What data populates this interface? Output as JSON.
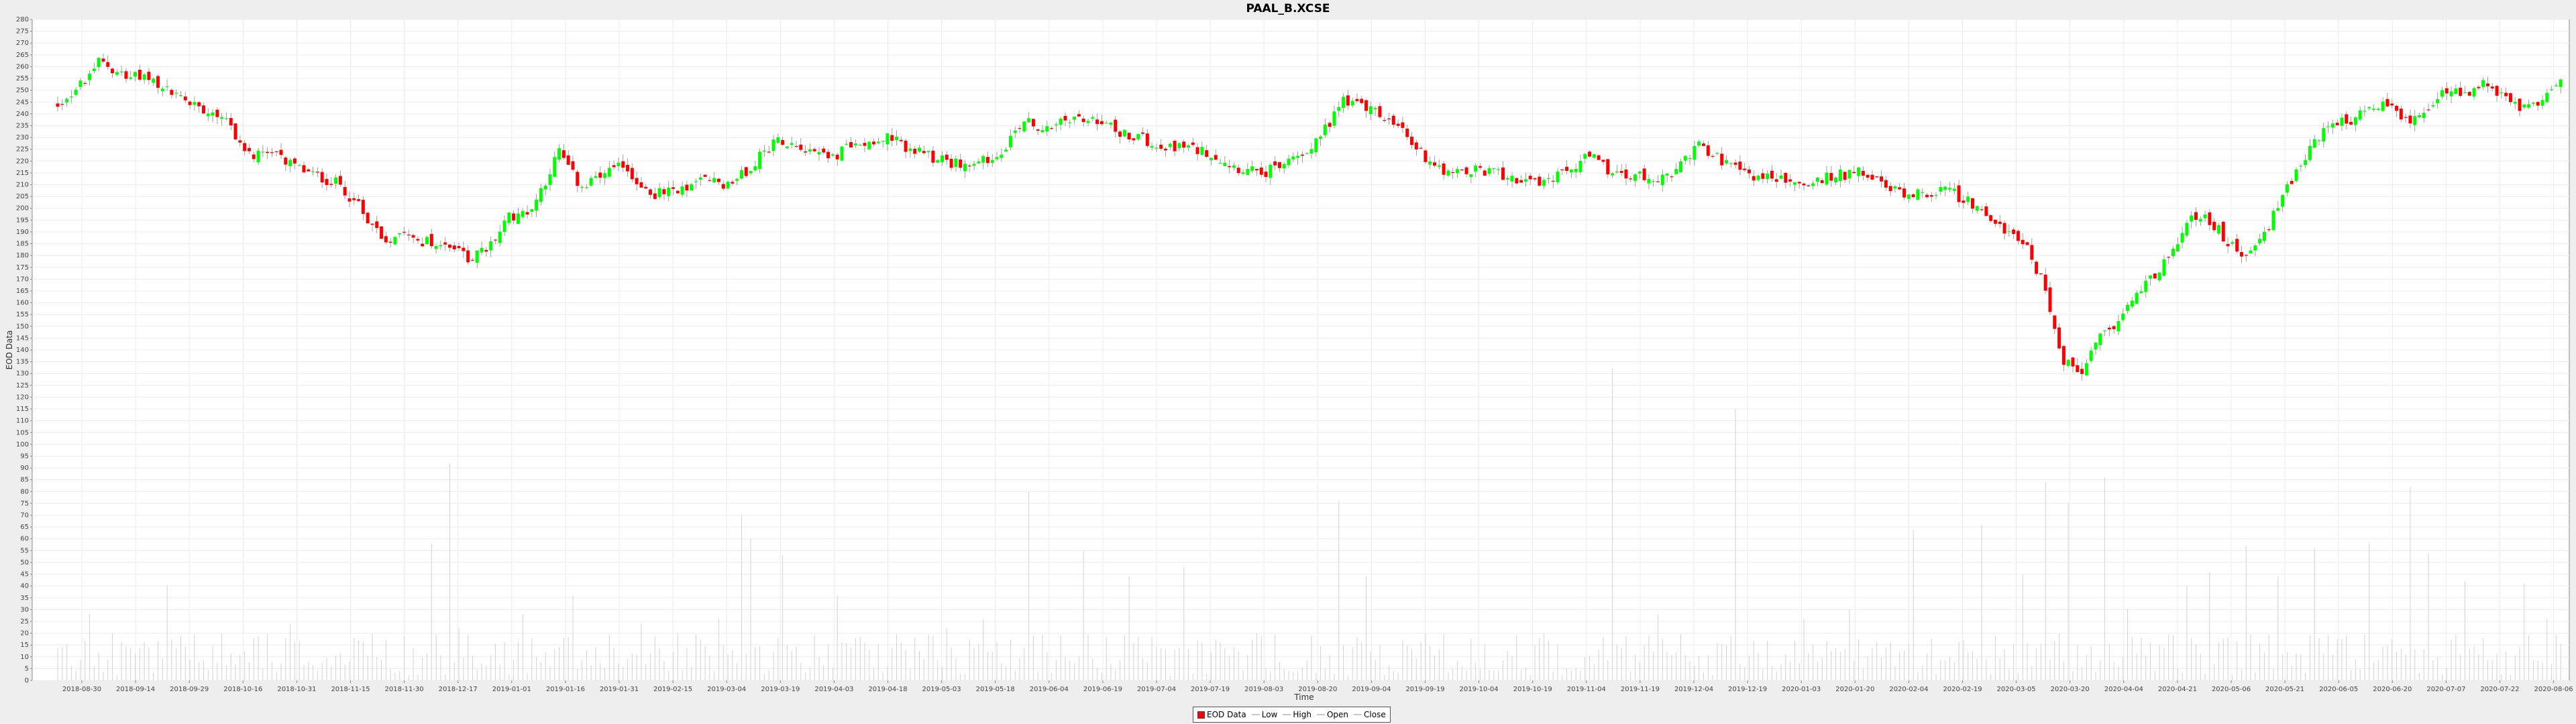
{
  "chart_data": {
    "type": "candlestick",
    "title": "PAAL_B.XCSE",
    "xlabel": "Time",
    "ylabel": "EOD Data",
    "ylim": [
      0,
      280
    ],
    "ytick_step": 5,
    "x_tick_labels": [
      "2018-08-30",
      "2018-09-14",
      "2018-09-29",
      "2018-10-16",
      "2018-10-31",
      "2018-11-15",
      "2018-11-30",
      "2018-12-17",
      "2019-01-01",
      "2019-01-16",
      "2019-01-31",
      "2019-02-15",
      "2019-03-04",
      "2019-03-19",
      "2019-04-03",
      "2019-04-18",
      "2019-05-03",
      "2019-05-18",
      "2019-06-04",
      "2019-06-19",
      "2019-07-04",
      "2019-07-19",
      "2019-08-03",
      "2019-08-20",
      "2019-09-04",
      "2019-09-19",
      "2019-10-04",
      "2019-10-19",
      "2019-11-04",
      "2019-11-19",
      "2019-12-04",
      "2019-12-19",
      "2020-01-03",
      "2020-01-20",
      "2020-02-04",
      "2020-02-19",
      "2020-03-05",
      "2020-03-20",
      "2020-04-04",
      "2020-04-21",
      "2020-05-06",
      "2020-05-21",
      "2020-06-05",
      "2020-06-20",
      "2020-07-07",
      "2020-07-22",
      "2020-08-06"
    ],
    "close_anchors": [
      [
        0,
        244
      ],
      [
        5,
        252
      ],
      [
        9,
        262
      ],
      [
        14,
        258
      ],
      [
        22,
        252
      ],
      [
        30,
        244
      ],
      [
        36,
        240
      ],
      [
        42,
        222
      ],
      [
        48,
        222
      ],
      [
        55,
        215
      ],
      [
        62,
        210
      ],
      [
        68,
        196
      ],
      [
        72,
        186
      ],
      [
        76,
        192
      ],
      [
        80,
        186
      ],
      [
        86,
        184
      ],
      [
        90,
        179
      ],
      [
        94,
        182
      ],
      [
        99,
        196
      ],
      [
        104,
        200
      ],
      [
        110,
        224
      ],
      [
        115,
        208
      ],
      [
        118,
        212
      ],
      [
        124,
        218
      ],
      [
        130,
        206
      ],
      [
        136,
        207
      ],
      [
        142,
        212
      ],
      [
        148,
        210
      ],
      [
        152,
        218
      ],
      [
        158,
        230
      ],
      [
        164,
        226
      ],
      [
        170,
        222
      ],
      [
        176,
        228
      ],
      [
        182,
        230
      ],
      [
        188,
        224
      ],
      [
        194,
        220
      ],
      [
        200,
        218
      ],
      [
        206,
        222
      ],
      [
        212,
        238
      ],
      [
        216,
        232
      ],
      [
        222,
        238
      ],
      [
        228,
        236
      ],
      [
        234,
        232
      ],
      [
        240,
        228
      ],
      [
        246,
        226
      ],
      [
        252,
        224
      ],
      [
        258,
        218
      ],
      [
        264,
        214
      ],
      [
        270,
        220
      ],
      [
        276,
        228
      ],
      [
        282,
        246
      ],
      [
        288,
        242
      ],
      [
        294,
        234
      ],
      [
        300,
        222
      ],
      [
        306,
        214
      ],
      [
        312,
        216
      ],
      [
        318,
        214
      ],
      [
        324,
        210
      ],
      [
        330,
        214
      ],
      [
        336,
        222
      ],
      [
        342,
        214
      ],
      [
        348,
        213
      ],
      [
        354,
        214
      ],
      [
        360,
        228
      ],
      [
        366,
        218
      ],
      [
        372,
        214
      ],
      [
        378,
        212
      ],
      [
        384,
        210
      ],
      [
        390,
        214
      ],
      [
        396,
        215
      ],
      [
        402,
        208
      ],
      [
        408,
        206
      ],
      [
        414,
        208
      ],
      [
        418,
        204
      ],
      [
        422,
        198
      ],
      [
        428,
        190
      ],
      [
        432,
        182
      ],
      [
        436,
        166
      ],
      [
        440,
        135
      ],
      [
        444,
        130
      ],
      [
        448,
        145
      ],
      [
        452,
        152
      ],
      [
        456,
        165
      ],
      [
        460,
        172
      ],
      [
        464,
        182
      ],
      [
        468,
        196
      ],
      [
        472,
        195
      ],
      [
        476,
        186
      ],
      [
        480,
        180
      ],
      [
        484,
        188
      ],
      [
        488,
        205
      ],
      [
        492,
        218
      ],
      [
        496,
        230
      ],
      [
        500,
        236
      ],
      [
        504,
        238
      ],
      [
        508,
        244
      ],
      [
        512,
        242
      ],
      [
        516,
        238
      ],
      [
        520,
        242
      ],
      [
        524,
        250
      ],
      [
        528,
        248
      ],
      [
        532,
        252
      ],
      [
        536,
        248
      ],
      [
        540,
        242
      ],
      [
        544,
        244
      ],
      [
        548,
        254
      ]
    ],
    "volume_spikes": [
      [
        7,
        28
      ],
      [
        12,
        20
      ],
      [
        20,
        14
      ],
      [
        24,
        40
      ],
      [
        36,
        20
      ],
      [
        51,
        24
      ],
      [
        65,
        18
      ],
      [
        82,
        58
      ],
      [
        86,
        92
      ],
      [
        88,
        22
      ],
      [
        102,
        28
      ],
      [
        113,
        36
      ],
      [
        128,
        24
      ],
      [
        136,
        20
      ],
      [
        145,
        26
      ],
      [
        150,
        70
      ],
      [
        152,
        60
      ],
      [
        159,
        53
      ],
      [
        171,
        36
      ],
      [
        175,
        18
      ],
      [
        195,
        22
      ],
      [
        203,
        26
      ],
      [
        213,
        80
      ],
      [
        225,
        55
      ],
      [
        235,
        44
      ],
      [
        247,
        48
      ],
      [
        263,
        20
      ],
      [
        281,
        76
      ],
      [
        287,
        44
      ],
      [
        300,
        20
      ],
      [
        325,
        18
      ],
      [
        341,
        132
      ],
      [
        351,
        28
      ],
      [
        368,
        115
      ],
      [
        383,
        26
      ],
      [
        393,
        30
      ],
      [
        407,
        64
      ],
      [
        422,
        66
      ],
      [
        431,
        45
      ],
      [
        436,
        84
      ],
      [
        441,
        75
      ],
      [
        449,
        86
      ],
      [
        454,
        30
      ],
      [
        467,
        40
      ],
      [
        472,
        46
      ],
      [
        480,
        57
      ],
      [
        487,
        44
      ],
      [
        495,
        56
      ],
      [
        507,
        58
      ],
      [
        516,
        82
      ],
      [
        520,
        54
      ],
      [
        528,
        42
      ],
      [
        541,
        41
      ],
      [
        546,
        26
      ]
    ],
    "series": [
      {
        "name": "EOD Data",
        "kind": "candle",
        "up_color": "#00ff00",
        "down_color": "#ff0000"
      },
      {
        "name": "Low",
        "kind": "line",
        "color": "#c8c8c8"
      },
      {
        "name": "High",
        "kind": "line",
        "color": "#c8c8c8"
      },
      {
        "name": "Open",
        "kind": "line",
        "color": "#c8c8c8"
      },
      {
        "name": "Close",
        "kind": "line",
        "color": "#c8c8c8"
      }
    ],
    "n_points": 550,
    "legend_position": "bottom-center",
    "grid": true
  }
}
